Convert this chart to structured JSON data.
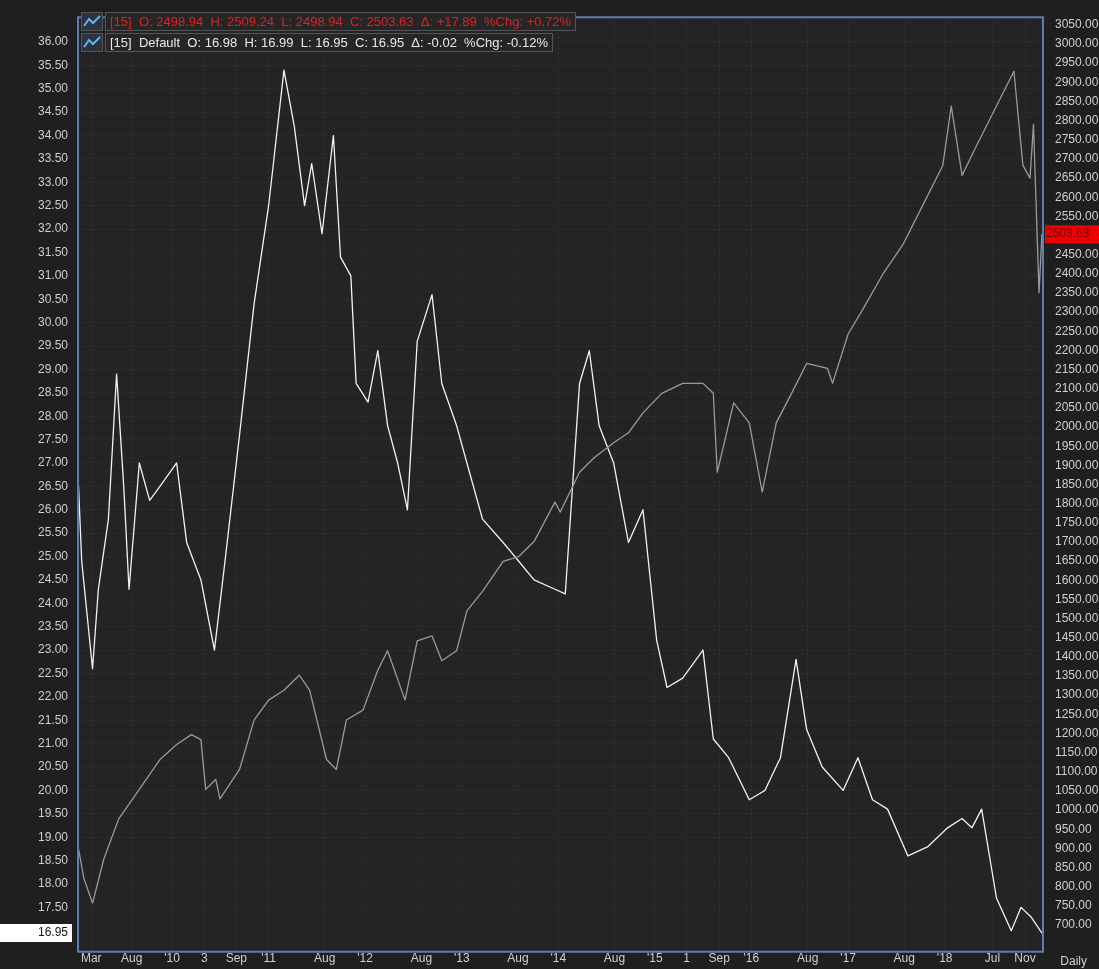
{
  "chart_data": {
    "type": "line",
    "grid": true,
    "legend": false,
    "marker": "none",
    "line_style": "solid",
    "xlim": [
      "2009-01-10",
      "2019-01-08"
    ],
    "xticks": [
      {
        "value": "2009-03-01",
        "label": "Mar"
      },
      {
        "value": "2009-08-01",
        "label": "Aug"
      },
      {
        "value": "2010-01-01",
        "label": "'10"
      },
      {
        "value": "2010-05-03",
        "label": "3"
      },
      {
        "value": "2010-09-01",
        "label": "Sep"
      },
      {
        "value": "2011-01-01",
        "label": "'11"
      },
      {
        "value": "2011-08-01",
        "label": "Aug"
      },
      {
        "value": "2012-01-01",
        "label": "'12"
      },
      {
        "value": "2012-08-01",
        "label": "Aug"
      },
      {
        "value": "2013-01-01",
        "label": "'13"
      },
      {
        "value": "2013-08-01",
        "label": "Aug"
      },
      {
        "value": "2014-01-01",
        "label": "'14"
      },
      {
        "value": "2014-08-01",
        "label": "Aug"
      },
      {
        "value": "2015-01-01",
        "label": "'15"
      },
      {
        "value": "2015-05-01",
        "label": "1"
      },
      {
        "value": "2015-09-01",
        "label": "Sep"
      },
      {
        "value": "2016-01-01",
        "label": "'16"
      },
      {
        "value": "2016-08-01",
        "label": "Aug"
      },
      {
        "value": "2017-01-01",
        "label": "'17"
      },
      {
        "value": "2017-08-01",
        "label": "Aug"
      },
      {
        "value": "2018-01-01",
        "label": "'18"
      },
      {
        "value": "2018-07-01",
        "label": "Jul"
      },
      {
        "value": "2018-11-01",
        "label": "Nov"
      }
    ],
    "ylim": [
      16.55,
      36.53
    ],
    "yticks": [
      {
        "value": 17.5,
        "label": "17.50"
      },
      {
        "value": 18,
        "label": "18.00"
      },
      {
        "value": 18.5,
        "label": "18.50"
      },
      {
        "value": 19,
        "label": "19.00"
      },
      {
        "value": 19.5,
        "label": "19.50"
      },
      {
        "value": 20,
        "label": "20.00"
      },
      {
        "value": 20.5,
        "label": "20.50"
      },
      {
        "value": 21,
        "label": "21.00"
      },
      {
        "value": 21.5,
        "label": "21.50"
      },
      {
        "value": 22,
        "label": "22.00"
      },
      {
        "value": 22.5,
        "label": "22.50"
      },
      {
        "value": 23,
        "label": "23.00"
      },
      {
        "value": 23.5,
        "label": "23.50"
      },
      {
        "value": 24,
        "label": "24.00"
      },
      {
        "value": 24.5,
        "label": "24.50"
      },
      {
        "value": 25,
        "label": "25.00"
      },
      {
        "value": 25.5,
        "label": "25.50"
      },
      {
        "value": 26,
        "label": "26.00"
      },
      {
        "value": 26.5,
        "label": "26.50"
      },
      {
        "value": 27,
        "label": "27.00"
      },
      {
        "value": 27.5,
        "label": "27.50"
      },
      {
        "value": 28,
        "label": "28.00"
      },
      {
        "value": 28.5,
        "label": "28.50"
      },
      {
        "value": 29,
        "label": "29.00"
      },
      {
        "value": 29.5,
        "label": "29.50"
      },
      {
        "value": 30,
        "label": "30.00"
      },
      {
        "value": 30.5,
        "label": "30.50"
      },
      {
        "value": 31,
        "label": "31.00"
      },
      {
        "value": 31.5,
        "label": "31.50"
      },
      {
        "value": 32,
        "label": "32.00"
      },
      {
        "value": 32.5,
        "label": "32.50"
      },
      {
        "value": 33,
        "label": "33.00"
      },
      {
        "value": 33.5,
        "label": "33.50"
      },
      {
        "value": 34,
        "label": "34.00"
      },
      {
        "value": 34.5,
        "label": "34.50"
      },
      {
        "value": 35,
        "label": "35.00"
      },
      {
        "value": 35.5,
        "label": "35.50"
      },
      {
        "value": 36,
        "label": "36.00"
      }
    ],
    "y2lim": [
      630,
      3070
    ],
    "y2ticks": [
      {
        "value": 700,
        "label": "700.00"
      },
      {
        "value": 750,
        "label": "750.00"
      },
      {
        "value": 800,
        "label": "800.00"
      },
      {
        "value": 850,
        "label": "850.00"
      },
      {
        "value": 900,
        "label": "900.00"
      },
      {
        "value": 950,
        "label": "950.00"
      },
      {
        "value": 1000,
        "label": "1000.00"
      },
      {
        "value": 1050,
        "label": "1050.00"
      },
      {
        "value": 1100,
        "label": "1100.00"
      },
      {
        "value": 1150,
        "label": "1150.00"
      },
      {
        "value": 1200,
        "label": "1200.00"
      },
      {
        "value": 1250,
        "label": "1250.00"
      },
      {
        "value": 1300,
        "label": "1300.00"
      },
      {
        "value": 1350,
        "label": "1350.00"
      },
      {
        "value": 1400,
        "label": "1400.00"
      },
      {
        "value": 1450,
        "label": "1450.00"
      },
      {
        "value": 1500,
        "label": "1500.00"
      },
      {
        "value": 1550,
        "label": "1550.00"
      },
      {
        "value": 1600,
        "label": "1600.00"
      },
      {
        "value": 1650,
        "label": "1650.00"
      },
      {
        "value": 1700,
        "label": "1700.00"
      },
      {
        "value": 1750,
        "label": "1750.00"
      },
      {
        "value": 1800,
        "label": "1800.00"
      },
      {
        "value": 1850,
        "label": "1850.00"
      },
      {
        "value": 1900,
        "label": "1900.00"
      },
      {
        "value": 1950,
        "label": "1950.00"
      },
      {
        "value": 2000,
        "label": "2000.00"
      },
      {
        "value": 2050,
        "label": "2050.00"
      },
      {
        "value": 2100,
        "label": "2100.00"
      },
      {
        "value": 2150,
        "label": "2150.00"
      },
      {
        "value": 2200,
        "label": "2200.00"
      },
      {
        "value": 2250,
        "label": "2250.00"
      },
      {
        "value": 2300,
        "label": "2300.00"
      },
      {
        "value": 2350,
        "label": "2350.00"
      },
      {
        "value": 2400,
        "label": "2400.00"
      },
      {
        "value": 2450,
        "label": "2450.00"
      },
      {
        "value": 2550,
        "label": "2550.00"
      },
      {
        "value": 2600,
        "label": "2600.00"
      },
      {
        "value": 2650,
        "label": "2650.00"
      },
      {
        "value": 2700,
        "label": "2700.00"
      },
      {
        "value": 2750,
        "label": "2750.00"
      },
      {
        "value": 2800,
        "label": "2800.00"
      },
      {
        "value": 2850,
        "label": "2850.00"
      },
      {
        "value": 2900,
        "label": "2900.00"
      },
      {
        "value": 2950,
        "label": "2950.00"
      },
      {
        "value": 3000,
        "label": "3000.00"
      },
      {
        "value": 3050,
        "label": "3050.00"
      }
    ],
    "series": [
      {
        "color": "#9a9a9a",
        "axis": "y2",
        "x": [
          "2009-01-12",
          "2009-02-01",
          "2009-03-06",
          "2009-04-18",
          "2009-06-13",
          "2009-08-30",
          "2009-11-16",
          "2010-01-18",
          "2010-03-15",
          "2010-04-20",
          "2010-05-08",
          "2010-06-15",
          "2010-07-01",
          "2010-09-13",
          "2010-11-07",
          "2011-01-01",
          "2011-02-28",
          "2011-04-27",
          "2011-06-05",
          "2011-08-08",
          "2011-09-14",
          "2011-10-22",
          "2011-12-24",
          "2012-02-18",
          "2012-03-26",
          "2012-05-31",
          "2012-07-16",
          "2012-09-10",
          "2012-10-17",
          "2012-12-12",
          "2013-01-20",
          "2013-03-20",
          "2013-06-06",
          "2013-08-04",
          "2013-10-01",
          "2013-12-19",
          "2014-01-08",
          "2014-03-22",
          "2014-05-16",
          "2014-07-29",
          "2014-09-23",
          "2014-11-17",
          "2015-01-27",
          "2015-04-16",
          "2015-07-02",
          "2015-08-10",
          "2015-08-25",
          "2015-10-26",
          "2015-12-24",
          "2016-02-11",
          "2016-04-04",
          "2016-06-01",
          "2016-07-28",
          "2016-10-15",
          "2016-11-03",
          "2017-01-01",
          "2017-02-26",
          "2017-05-12",
          "2017-07-27",
          "2017-10-11",
          "2017-12-25",
          "2018-01-26",
          "2018-03-08",
          "2018-05-02",
          "2018-06-27",
          "2018-09-20",
          "2018-10-24",
          "2018-11-20",
          "2018-12-03",
          "2018-12-24",
          "2019-01-04"
        ],
        "values": [
          899,
          822,
          757,
          873,
          977,
          1054,
          1132,
          1171,
          1197,
          1184,
          1054,
          1080,
          1029,
          1106,
          1235,
          1287,
          1313,
          1352,
          1313,
          1132,
          1106,
          1235,
          1261,
          1365,
          1416,
          1287,
          1442,
          1455,
          1390,
          1416,
          1520,
          1571,
          1649,
          1662,
          1701,
          1804,
          1778,
          1882,
          1920,
          1959,
          1985,
          2037,
          2088,
          2114,
          2114,
          2088,
          1882,
          2063,
          2011,
          1830,
          2011,
          2088,
          2166,
          2153,
          2114,
          2243,
          2308,
          2399,
          2476,
          2580,
          2683,
          2838,
          2657,
          2735,
          2812,
          2929,
          2683,
          2650,
          2790,
          2351,
          2503.63
        ]
      },
      {
        "color": "#f2f2f2",
        "x": [
          "2009-01-12",
          "2009-01-24",
          "2009-03-06",
          "2009-03-28",
          "2009-05-05",
          "2009-06-05",
          "2009-07-02",
          "2009-07-22",
          "2009-08-30",
          "2009-10-08",
          "2009-11-16",
          "2010-01-18",
          "2010-02-25",
          "2010-04-20",
          "2010-06-10",
          "2010-07-20",
          "2010-09-13",
          "2010-11-07",
          "2011-01-01",
          "2011-02-28",
          "2011-04-08",
          "2011-05-17",
          "2011-06-13",
          "2011-07-22",
          "2011-09-03",
          "2011-09-30",
          "2011-11-08",
          "2011-11-28",
          "2012-01-12",
          "2012-02-18",
          "2012-03-26",
          "2012-05-03",
          "2012-06-09",
          "2012-07-16",
          "2012-09-10",
          "2012-10-17",
          "2012-12-12",
          "2013-01-20",
          "2013-03-20",
          "2013-06-06",
          "2013-08-04",
          "2013-10-01",
          "2013-12-19",
          "2014-01-27",
          "2014-03-22",
          "2014-04-28",
          "2014-06-04",
          "2014-07-29",
          "2014-09-23",
          "2014-11-17",
          "2015-01-08",
          "2015-02-16",
          "2015-04-16",
          "2015-07-02",
          "2015-08-10",
          "2015-10-07",
          "2015-12-24",
          "2016-02-21",
          "2016-04-20",
          "2016-06-18",
          "2016-07-28",
          "2016-09-25",
          "2016-12-13",
          "2017-02-07",
          "2017-04-03",
          "2017-05-30",
          "2017-08-15",
          "2017-10-30",
          "2018-01-12",
          "2018-03-08",
          "2018-04-14",
          "2018-05-21",
          "2018-07-16",
          "2018-09-10",
          "2018-10-17",
          "2018-11-23",
          "2019-01-04"
        ],
        "values": [
          26.5,
          24.9,
          22.6,
          24.3,
          25.8,
          28.9,
          26.5,
          24.3,
          27.0,
          26.2,
          26.5,
          27.0,
          25.3,
          24.5,
          23.0,
          24.9,
          27.6,
          30.4,
          32.5,
          35.4,
          34.2,
          32.5,
          33.4,
          31.9,
          34.0,
          31.4,
          31.0,
          28.7,
          28.3,
          29.4,
          27.8,
          27.0,
          26.0,
          29.6,
          30.6,
          28.7,
          27.8,
          27.0,
          25.8,
          25.3,
          24.9,
          24.5,
          24.3,
          24.2,
          28.7,
          29.4,
          27.8,
          27.0,
          25.3,
          26.0,
          23.2,
          22.2,
          22.4,
          23.0,
          21.1,
          20.7,
          19.8,
          20.0,
          20.7,
          22.8,
          21.3,
          20.5,
          20.0,
          20.7,
          19.8,
          19.6,
          18.6,
          18.8,
          19.2,
          19.4,
          19.2,
          19.6,
          17.7,
          17.0,
          17.5,
          17.3,
          16.95
        ]
      }
    ],
    "annotations": [
      "[15]  O: 2498.94  H: 2509.24  L: 2498.94  C: 2503.63  Δ: +17.89  %Chg: +0.72%",
      "[15]  Default  O: 16.98  H: 16.99  L: 16.95  C: 16.95  Δ: -0.02  %Chg: -0.12%",
      "Daily",
      "16.95",
      "2503.63"
    ]
  }
}
